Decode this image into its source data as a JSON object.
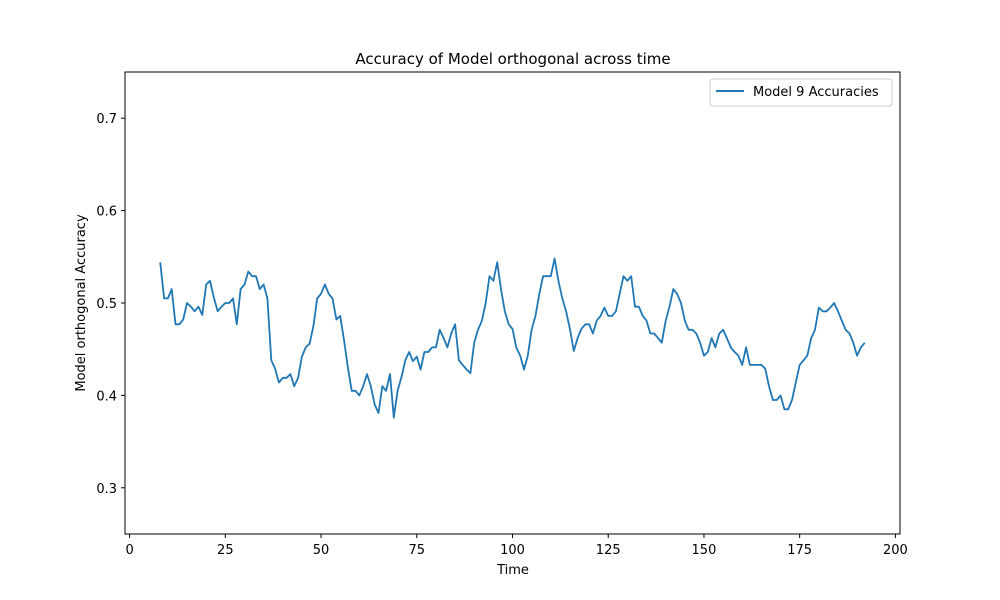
{
  "chart_data": {
    "type": "line",
    "title": "Accuracy of Model orthogonal across time",
    "xlabel": "Time",
    "ylabel": "Model orthogonal Accuracy",
    "xlim": [
      -1.2,
      201.2
    ],
    "ylim": [
      0.25,
      0.75
    ],
    "xticks": [
      0,
      25,
      50,
      75,
      100,
      125,
      150,
      175,
      200
    ],
    "yticks": [
      0.3,
      0.4,
      0.5,
      0.6,
      0.7
    ],
    "grid": false,
    "legend_position": "top-right",
    "series_color": "#1f77b4",
    "series": [
      {
        "name": "Model 9 Accuracies",
        "x": [
          8,
          9,
          10,
          11,
          12,
          13,
          14,
          15,
          16,
          17,
          18,
          19,
          20,
          21,
          22,
          23,
          24,
          25,
          26,
          27,
          28,
          29,
          30,
          31,
          32,
          33,
          34,
          35,
          36,
          37,
          38,
          39,
          40,
          41,
          42,
          43,
          44,
          45,
          46,
          47,
          48,
          49,
          50,
          51,
          52,
          53,
          54,
          55,
          56,
          57,
          58,
          59,
          60,
          61,
          62,
          63,
          64,
          65,
          66,
          67,
          68,
          69,
          70,
          71,
          72,
          73,
          74,
          75,
          76,
          77,
          78,
          79,
          80,
          81,
          82,
          83,
          84,
          85,
          86,
          87,
          88,
          89,
          90,
          91,
          92,
          93,
          94,
          95,
          96,
          97,
          98,
          99,
          100,
          101,
          102,
          103,
          104,
          105,
          106,
          107,
          108,
          109,
          110,
          111,
          112,
          113,
          114,
          115,
          116,
          117,
          118,
          119,
          120,
          121,
          122,
          123,
          124,
          125,
          126,
          127,
          128,
          129,
          130,
          131,
          132,
          133,
          134,
          135,
          136,
          137,
          138,
          139,
          140,
          141,
          142,
          143,
          144,
          145,
          146,
          147,
          148,
          149,
          150,
          151,
          152,
          153,
          154,
          155,
          156,
          157,
          158,
          159,
          160,
          161,
          162,
          163,
          164,
          165,
          166,
          167,
          168,
          169,
          170,
          171,
          172,
          173,
          174,
          175,
          176,
          177,
          178,
          179,
          180,
          181,
          182,
          183,
          184,
          185,
          186,
          187,
          188,
          189,
          190,
          191,
          192
        ],
        "y": [
          0.544,
          0.505,
          0.505,
          0.515,
          0.477,
          0.477,
          0.482,
          0.5,
          0.496,
          0.491,
          0.496,
          0.487,
          0.52,
          0.524,
          0.506,
          0.491,
          0.496,
          0.5,
          0.5,
          0.505,
          0.477,
          0.515,
          0.52,
          0.534,
          0.529,
          0.529,
          0.515,
          0.52,
          0.505,
          0.438,
          0.429,
          0.414,
          0.419,
          0.419,
          0.423,
          0.41,
          0.419,
          0.442,
          0.452,
          0.456,
          0.475,
          0.505,
          0.51,
          0.52,
          0.51,
          0.505,
          0.482,
          0.486,
          0.46,
          0.43,
          0.405,
          0.405,
          0.4,
          0.41,
          0.423,
          0.41,
          0.39,
          0.381,
          0.41,
          0.405,
          0.423,
          0.376,
          0.405,
          0.42,
          0.438,
          0.447,
          0.437,
          0.442,
          0.428,
          0.447,
          0.447,
          0.452,
          0.452,
          0.471,
          0.462,
          0.452,
          0.467,
          0.477,
          0.438,
          0.433,
          0.428,
          0.424,
          0.457,
          0.471,
          0.481,
          0.5,
          0.529,
          0.524,
          0.544,
          0.515,
          0.491,
          0.477,
          0.472,
          0.452,
          0.443,
          0.428,
          0.443,
          0.471,
          0.486,
          0.51,
          0.529,
          0.529,
          0.529,
          0.548,
          0.524,
          0.505,
          0.491,
          0.472,
          0.448,
          0.462,
          0.472,
          0.477,
          0.477,
          0.467,
          0.481,
          0.486,
          0.495,
          0.486,
          0.486,
          0.491,
          0.51,
          0.529,
          0.524,
          0.529,
          0.496,
          0.496,
          0.486,
          0.481,
          0.467,
          0.467,
          0.462,
          0.457,
          0.481,
          0.496,
          0.515,
          0.51,
          0.5,
          0.481,
          0.471,
          0.471,
          0.467,
          0.457,
          0.443,
          0.447,
          0.462,
          0.452,
          0.467,
          0.471,
          0.462,
          0.452,
          0.447,
          0.443,
          0.433,
          0.452,
          0.433,
          0.433,
          0.433,
          0.433,
          0.429,
          0.41,
          0.395,
          0.395,
          0.4,
          0.385,
          0.385,
          0.395,
          0.414,
          0.433,
          0.438,
          0.443,
          0.462,
          0.471,
          0.495,
          0.491,
          0.491,
          0.495,
          0.5,
          0.491,
          0.481,
          0.471,
          0.467,
          0.457,
          0.443,
          0.452,
          0.457
        ]
      }
    ]
  }
}
